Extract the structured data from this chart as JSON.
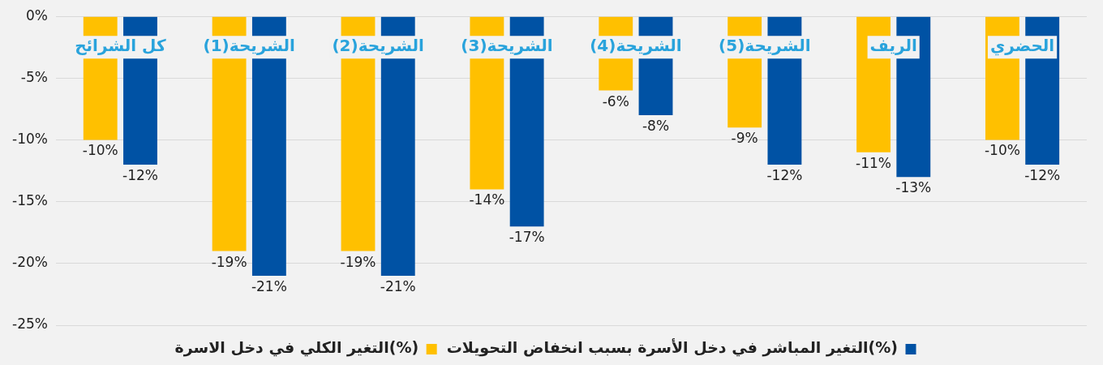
{
  "chart_data": {
    "type": "bar",
    "categories": [
      "كل الشرائح",
      "الشريحة(1)",
      "الشريحة(2)",
      "الشريحة(3)",
      "الشريحة(4)",
      "الشريحة(5)",
      "الريف",
      "الحضري"
    ],
    "series": [
      {
        "name": "التغير الكلي في دخل الاسرة(%)",
        "color": "#ffc000",
        "values": [
          -10,
          -19,
          -19,
          -14,
          -6,
          -9,
          -11,
          -10
        ],
        "value_labels": [
          "-10%",
          "-19%",
          "-19%",
          "-14%",
          "-6%",
          "-9%",
          "-11%",
          "-10%"
        ]
      },
      {
        "name": "التغير المباشر في دخل الأسرة بسبب انخفاض التحويلات(%)",
        "color": "#0052a4",
        "values": [
          -12,
          -21,
          -21,
          -17,
          -8,
          -12,
          -13,
          -12
        ],
        "value_labels": [
          "-12%",
          "-21%",
          "-21%",
          "-17%",
          "-8%",
          "-12%",
          "-13%",
          "-12%"
        ]
      }
    ],
    "ylim": [
      -25,
      0
    ],
    "yticks": [
      {
        "value": 0,
        "label": "0%"
      },
      {
        "value": -5,
        "label": "-5%"
      },
      {
        "value": -10,
        "label": "-10%"
      },
      {
        "value": -15,
        "label": "-15%"
      },
      {
        "value": -20,
        "label": "-20%"
      },
      {
        "value": -25,
        "label": "-25%"
      }
    ],
    "grid": "y",
    "legend": "bottom"
  }
}
